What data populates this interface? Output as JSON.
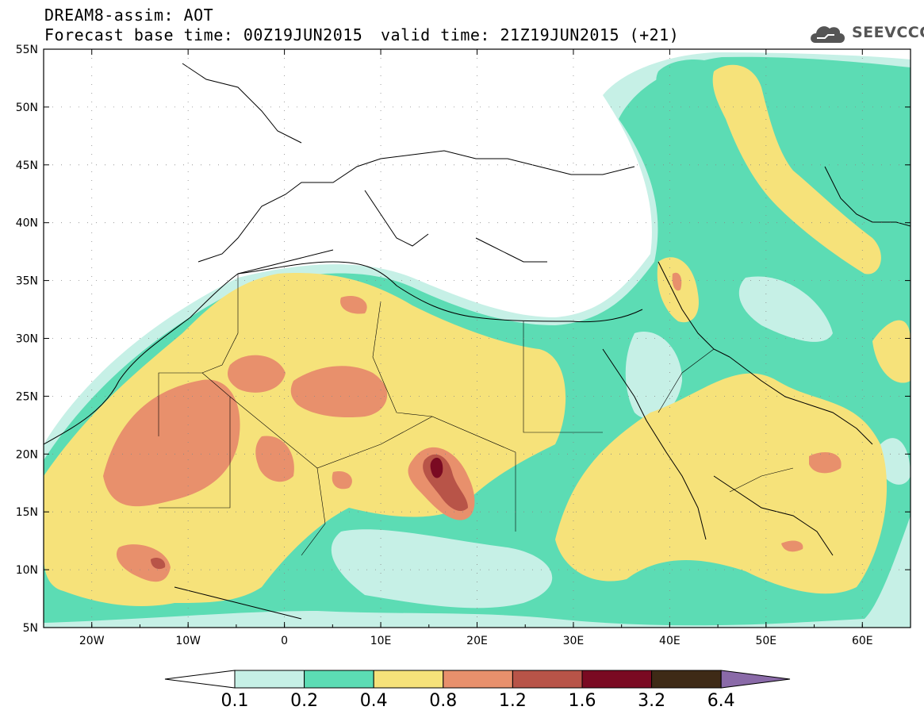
{
  "header": {
    "line1": "DREAM8-assim: AOT",
    "line2": "Forecast base time: 00Z19JUN2015",
    "line3": "valid time: 21Z19JUN2015 (+21)",
    "logo": "SEEVCCC"
  },
  "map": {
    "variable": "AOT",
    "lon_range": [
      -25,
      65
    ],
    "lat_range": [
      5,
      55
    ],
    "lat_labels": [
      "55N",
      "50N",
      "45N",
      "40N",
      "35N",
      "30N",
      "25N",
      "20N",
      "15N",
      "10N",
      "5N"
    ],
    "lon_labels": [
      "20W",
      "10W",
      "0",
      "10E",
      "20E",
      "30E",
      "40E",
      "50E",
      "60E"
    ]
  },
  "colorbar": {
    "levels": [
      "0.1",
      "0.2",
      "0.4",
      "0.8",
      "1.2",
      "1.6",
      "3.2",
      "6.4"
    ],
    "colors": [
      "#ffffff",
      "#c6f0e6",
      "#5cdcb4",
      "#f6e27a",
      "#e8906c",
      "#b85448",
      "#7a0a22",
      "#3e2a16",
      "#8a6aa8"
    ]
  }
}
